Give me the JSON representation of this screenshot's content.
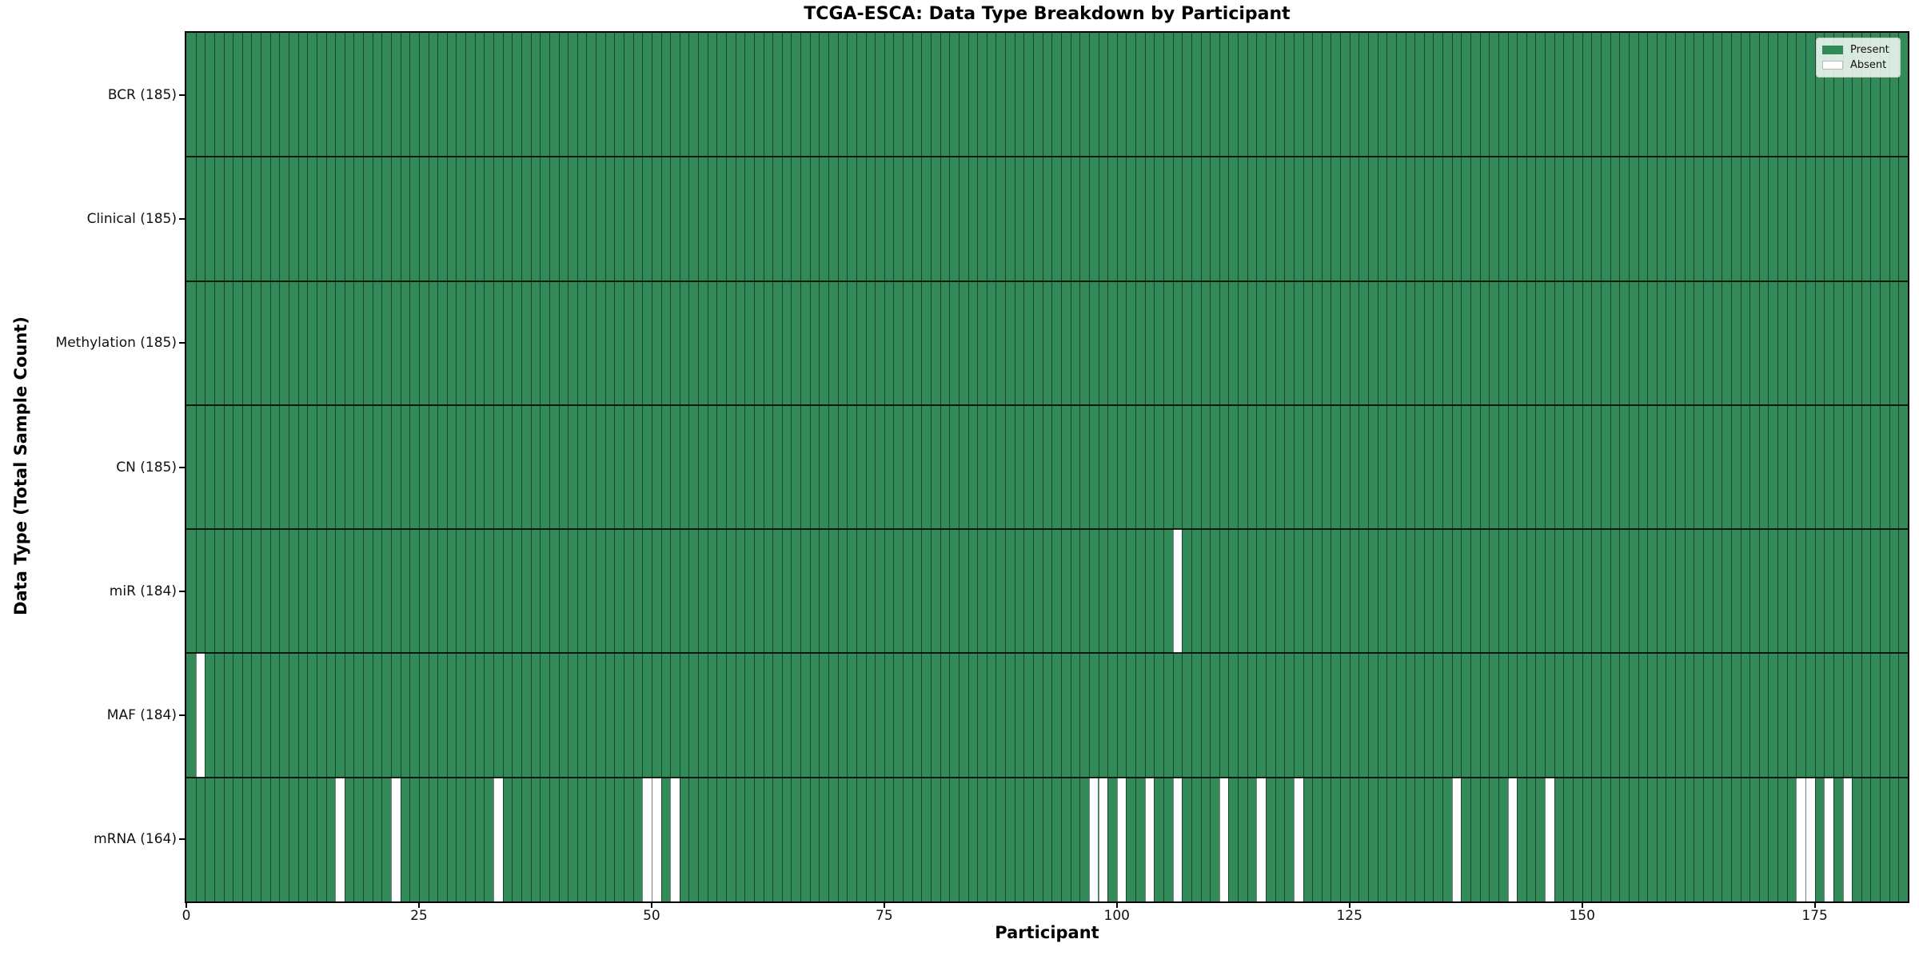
{
  "title": "TCGA-ESCA: Data Type Breakdown by Participant",
  "xlabel": "Participant",
  "ylabel": "Data Type (Total Sample Count)",
  "legend": {
    "present_label": "Present",
    "absent_label": "Absent",
    "position": "upper right"
  },
  "colors": {
    "present": "#318a58",
    "absent": "#ffffff"
  },
  "chart_data": {
    "type": "heatmap",
    "title": "TCGA-ESCA: Data Type Breakdown by Participant",
    "xlabel": "Participant",
    "ylabel": "Data Type (Total Sample Count)",
    "n_participants": 185,
    "x_range": [
      0,
      185
    ],
    "x_ticks": [
      0,
      25,
      50,
      75,
      100,
      125,
      150,
      175
    ],
    "grid": true,
    "legend_entries": [
      "Present",
      "Absent"
    ],
    "legend_position": "upper right",
    "value_encoding": {
      "present": 1,
      "absent": 0
    },
    "rows": [
      {
        "label": "BCR (185)",
        "data_type": "BCR",
        "total_samples": 185,
        "absent_participants": []
      },
      {
        "label": "Clinical (185)",
        "data_type": "Clinical",
        "total_samples": 185,
        "absent_participants": []
      },
      {
        "label": "Methylation (185)",
        "data_type": "Methylation",
        "total_samples": 185,
        "absent_participants": []
      },
      {
        "label": "CN (185)",
        "data_type": "CN",
        "total_samples": 185,
        "absent_participants": []
      },
      {
        "label": "miR (184)",
        "data_type": "miR",
        "total_samples": 184,
        "absent_participants": [
          106
        ]
      },
      {
        "label": "MAF (184)",
        "data_type": "MAF",
        "total_samples": 184,
        "absent_participants": [
          1
        ]
      },
      {
        "label": "mRNA (164)",
        "data_type": "mRNA",
        "total_samples": 164,
        "absent_participants": [
          16,
          22,
          33,
          49,
          50,
          52,
          97,
          98,
          100,
          103,
          106,
          111,
          115,
          119,
          136,
          142,
          146,
          173,
          174,
          176,
          178
        ]
      }
    ]
  }
}
